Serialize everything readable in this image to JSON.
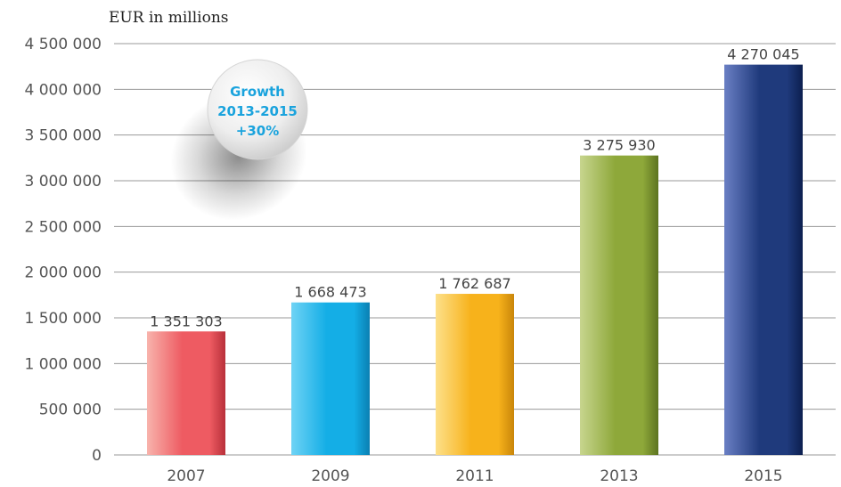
{
  "chart_data": {
    "type": "bar",
    "ylabel": "EUR in millions",
    "categories": [
      "2007",
      "2009",
      "2011",
      "2013",
      "2015"
    ],
    "values": [
      1351303,
      1668473,
      1762687,
      3275930,
      4270045
    ],
    "value_labels": [
      "1 351 303",
      "1 668 473",
      "1 762 687",
      "3 275 930",
      "4 270 045"
    ],
    "ylim": [
      0,
      4500000
    ],
    "yticks": [
      0,
      500000,
      1000000,
      1500000,
      2000000,
      2500000,
      3000000,
      3500000,
      4000000,
      4500000
    ],
    "ytick_labels": [
      "0",
      "500 000",
      "1 000 000",
      "1 500 000",
      "2 000 000",
      "2 500 000",
      "3 000 000",
      "3 500 000",
      "4 000 000",
      "4 500 000"
    ],
    "grid": true,
    "bar_colors": [
      {
        "light": "#f8b3ac",
        "mid": "#ee5b62",
        "dark": "#b8303a"
      },
      {
        "light": "#6fd3f5",
        "mid": "#14aee6",
        "dark": "#0a7fb2"
      },
      {
        "light": "#fde08a",
        "mid": "#f7b21b",
        "dark": "#c9860a"
      },
      {
        "light": "#c7d58e",
        "mid": "#8ea83a",
        "dark": "#5d7420"
      },
      {
        "light": "#6a7fc4",
        "mid": "#1f3a7c",
        "dark": "#0c1f4f"
      }
    ],
    "annotation": {
      "lines": [
        "Growth",
        "2013-2015",
        "+30%"
      ],
      "color": "#1aa3dd"
    }
  }
}
